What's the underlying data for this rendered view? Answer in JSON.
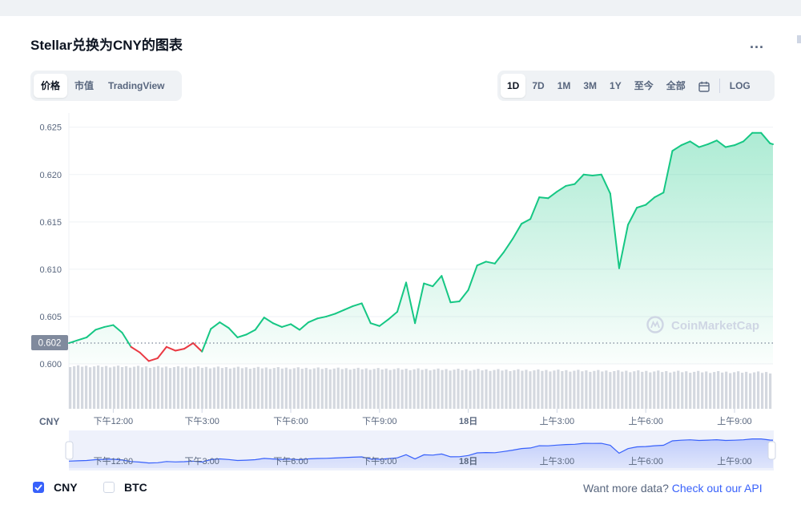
{
  "title": "Stellar兑换为CNY的图表",
  "more_label": "...",
  "view_tabs": [
    {
      "label": "价格",
      "active": true
    },
    {
      "label": "市值",
      "active": false
    },
    {
      "label": "TradingView",
      "active": false
    }
  ],
  "range_tabs": [
    {
      "label": "1D",
      "active": true
    },
    {
      "label": "7D",
      "active": false
    },
    {
      "label": "1M",
      "active": false
    },
    {
      "label": "3M",
      "active": false
    },
    {
      "label": "1Y",
      "active": false
    },
    {
      "label": "至今",
      "active": false
    },
    {
      "label": "全部",
      "active": false
    }
  ],
  "calendar_icon": "calendar-icon",
  "log_label": "LOG",
  "watermark": "CoinMarketCap",
  "legend": [
    {
      "label": "CNY",
      "checked": true
    },
    {
      "label": "BTC",
      "checked": false
    }
  ],
  "footer": {
    "prefix": "Want more data? ",
    "link": "Check out our API"
  },
  "colors": {
    "up": "#16c784",
    "down": "#ea3943",
    "accent": "#3861fb",
    "navigator": "#3861fb"
  },
  "chart_data": {
    "type": "line",
    "currency_label": "CNY",
    "current_price_label": "0.602",
    "current_price": 0.6022,
    "reference_price": 0.6022,
    "ylim": [
      0.6,
      0.6265
    ],
    "y_ticks": [
      "0.625",
      "0.620",
      "0.615",
      "0.610",
      "0.605",
      "0.600"
    ],
    "y_tick_values": [
      0.625,
      0.62,
      0.615,
      0.61,
      0.605,
      0.6
    ],
    "x_ticks": [
      "下午12:00",
      "下午3:00",
      "下午6:00",
      "下午9:00",
      "18日",
      "上午3:00",
      "上午6:00",
      "上午9:00"
    ],
    "x_tick_hours": [
      1.5,
      4.5,
      7.5,
      10.5,
      13.5,
      16.5,
      19.5,
      22.5
    ],
    "x_range_hours": [
      0,
      23.8
    ],
    "series": [
      {
        "x": [
          0,
          0.3,
          0.6,
          0.9,
          1.2,
          1.5,
          1.8,
          2.1,
          2.4,
          2.7,
          3.0,
          3.3,
          3.6,
          3.9,
          4.2,
          4.5,
          4.8,
          5.1,
          5.4,
          5.7,
          6.0,
          6.3,
          6.6,
          6.9,
          7.2,
          7.5,
          7.8,
          8.1,
          8.4,
          8.7,
          9.0,
          9.3,
          9.6,
          9.9,
          10.2,
          10.5,
          10.8,
          11.1,
          11.4,
          11.7,
          12.0,
          12.3,
          12.6,
          12.9,
          13.2,
          13.5,
          13.8,
          14.1,
          14.4,
          14.7,
          15.0,
          15.3,
          15.6,
          15.9,
          16.2,
          16.5,
          16.8,
          17.1,
          17.4,
          17.7,
          18.0,
          18.3,
          18.6,
          18.9,
          19.2,
          19.5,
          19.8,
          20.1,
          20.4,
          20.7,
          21.0,
          21.3,
          21.6,
          21.9,
          22.2,
          22.5,
          22.8,
          23.1,
          23.4,
          23.7,
          23.8
        ],
        "values": [
          0.6022,
          0.6025,
          0.6028,
          0.6036,
          0.6039,
          0.6041,
          0.6033,
          0.6018,
          0.6012,
          0.6003,
          0.6006,
          0.6018,
          0.6014,
          0.6016,
          0.6022,
          0.6013,
          0.6037,
          0.6044,
          0.6038,
          0.6028,
          0.6031,
          0.6036,
          0.6049,
          0.6043,
          0.6039,
          0.6042,
          0.6036,
          0.6044,
          0.6048,
          0.605,
          0.6053,
          0.6057,
          0.6061,
          0.6064,
          0.6043,
          0.604,
          0.6047,
          0.6055,
          0.6086,
          0.6043,
          0.6085,
          0.6082,
          0.6093,
          0.6065,
          0.6066,
          0.6078,
          0.6104,
          0.6108,
          0.6106,
          0.6118,
          0.6132,
          0.6148,
          0.6153,
          0.6176,
          0.6175,
          0.6182,
          0.6188,
          0.619,
          0.62,
          0.6199,
          0.62,
          0.618,
          0.6101,
          0.6147,
          0.6165,
          0.6168,
          0.6176,
          0.6181,
          0.6225,
          0.6231,
          0.6235,
          0.6229,
          0.6232,
          0.6236,
          0.6229,
          0.6231,
          0.6235,
          0.6244,
          0.6244,
          0.6233,
          0.6232
        ]
      }
    ],
    "navigator": {
      "x_ticks": [
        "下午12:00",
        "下午3:00",
        "下午6:00",
        "下午9:00",
        "18日",
        "上午3:00",
        "上午6:00",
        "上午9:00"
      ]
    },
    "grid": true,
    "legend_placement": "bottom-left"
  }
}
